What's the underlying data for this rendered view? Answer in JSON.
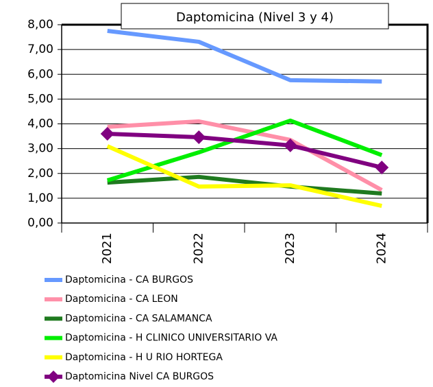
{
  "chart_data": {
    "type": "line",
    "title": "Daptomicina (Nivel 3 y 4)",
    "categories": [
      "2021",
      "2022",
      "2023",
      "2024"
    ],
    "series": [
      {
        "name": "Daptomicina - CA BURGOS",
        "color": "#6699ff",
        "values": [
          7.75,
          7.31,
          5.76,
          5.71
        ]
      },
      {
        "name": "Daptomicina - CA LEON",
        "color": "#ff8fa8",
        "values": [
          3.88,
          4.1,
          3.35,
          1.33
        ]
      },
      {
        "name": "Daptomicina - CA SALAMANCA",
        "color": "#1f7a1f",
        "values": [
          1.63,
          1.86,
          1.47,
          1.19
        ]
      },
      {
        "name": "Daptomicina - H CLINICO UNIVERSITARIO VA",
        "color": "#00ee00",
        "values": [
          1.72,
          2.85,
          4.13,
          2.74
        ]
      },
      {
        "name": "Daptomicina - H U RIO HORTEGA",
        "color": "#ffff00",
        "values": [
          3.1,
          1.47,
          1.52,
          0.69
        ]
      },
      {
        "name": "Daptomicina Nivel CA BURGOS",
        "color": "#800080",
        "values": [
          3.6,
          3.46,
          3.13,
          2.24
        ],
        "marker": "diamond"
      }
    ],
    "ylim": [
      0,
      8
    ],
    "yticks": [
      {
        "value": 0,
        "label": "0,00"
      },
      {
        "value": 1,
        "label": "1,00"
      },
      {
        "value": 2,
        "label": "2,00"
      },
      {
        "value": 3,
        "label": "3,00"
      },
      {
        "value": 4,
        "label": "4,00"
      },
      {
        "value": 5,
        "label": "5,00"
      },
      {
        "value": 6,
        "label": "6,00"
      },
      {
        "value": 7,
        "label": "7,00"
      },
      {
        "value": 8,
        "label": "8,00"
      }
    ],
    "grid": true,
    "legend": "bottom"
  }
}
